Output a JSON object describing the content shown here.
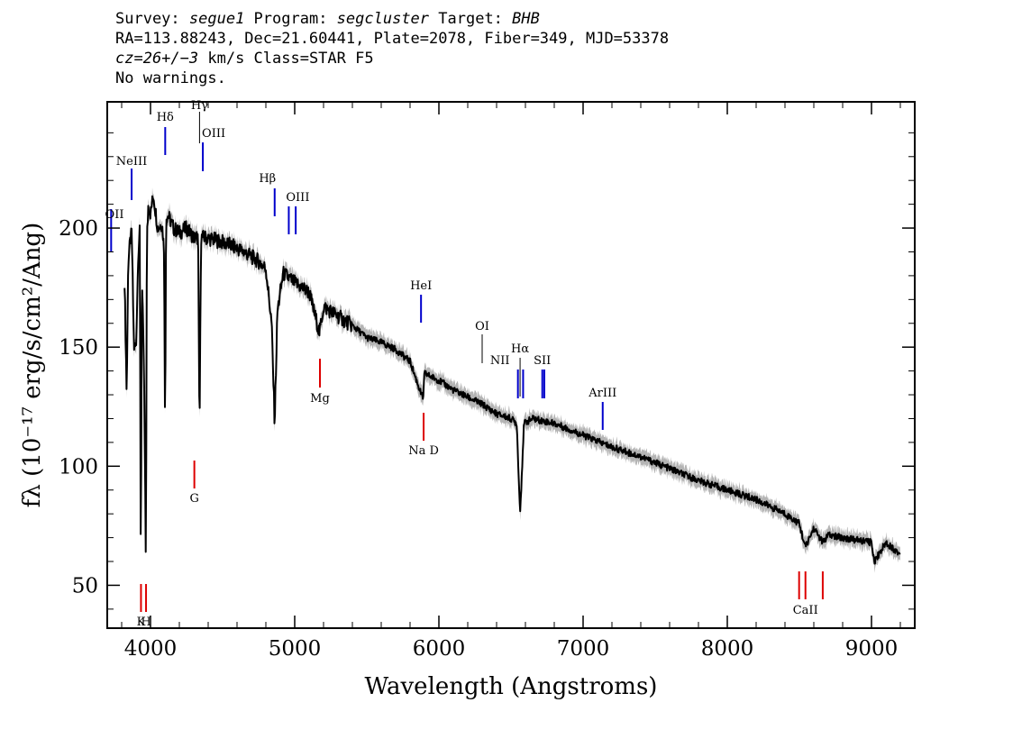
{
  "header": {
    "line1": {
      "survey_label": "Survey: ",
      "survey": "segue1",
      "program_label": " Program: ",
      "program": "segcluster",
      "target_label": " Target: ",
      "target": "BHB"
    },
    "line2": "RA=113.88243, Dec=21.60441, Plate=2078, Fiber=349, MJD=53378",
    "line3": {
      "cz": "cz=26+/−3",
      "rest": " km/s Class=STAR F5"
    },
    "line4": "No warnings."
  },
  "chart_data": {
    "type": "line",
    "xlabel": "Wavelength (Angstroms)",
    "ylabel": "fλ (10⁻¹⁷ erg/s/cm²/Ang)",
    "xlim": [
      3700,
      9300
    ],
    "ylim": [
      32,
      253
    ],
    "x_ticks": [
      4000,
      5000,
      6000,
      7000,
      8000,
      9000
    ],
    "y_ticks": [
      50,
      100,
      150,
      200
    ],
    "series": [
      {
        "color": "#000000",
        "error_band_color": "#b4b4b4",
        "x": [
          3820,
          3835,
          3845,
          3860,
          3870,
          3885,
          3900,
          3915,
          3925,
          3933,
          3940,
          3955,
          3968,
          3975,
          3985,
          4000,
          4020,
          4050,
          4080,
          4095,
          4101,
          4108,
          4125,
          4160,
          4200,
          4250,
          4300,
          4330,
          4340,
          4350,
          4380,
          4450,
          4550,
          4650,
          4750,
          4800,
          4840,
          4861,
          4880,
          4920,
          5000,
          5100,
          5172,
          5200,
          5300,
          5400,
          5500,
          5600,
          5700,
          5800,
          5890,
          5900,
          6000,
          6100,
          6200,
          6300,
          6400,
          6500,
          6540,
          6563,
          6590,
          6650,
          6800,
          7000,
          7200,
          7400,
          7600,
          7800,
          8000,
          8200,
          8400,
          8498,
          8542,
          8600,
          8662,
          8700,
          8800,
          8900,
          9000,
          9020,
          9100,
          9200
        ],
        "y": [
          178,
          130,
          185,
          195,
          198,
          150,
          150,
          190,
          198,
          55,
          180,
          140,
          58,
          195,
          210,
          206,
          214,
          200,
          202,
          190,
          110,
          205,
          205,
          200,
          198,
          200,
          196,
          196,
          112,
          196,
          196,
          195,
          193,
          190,
          186,
          183,
          160,
          118,
          165,
          181,
          177,
          173,
          156,
          167,
          163,
          159,
          154,
          152,
          149,
          144,
          128,
          139,
          136,
          132,
          129,
          126,
          122,
          120,
          118,
          80,
          118,
          120,
          118,
          113,
          108,
          104,
          99,
          94,
          90,
          86,
          80,
          76,
          66,
          74,
          68,
          71,
          70,
          69,
          68,
          60,
          68,
          63
        ]
      }
    ],
    "emission_lines": [
      {
        "label": "OII",
        "wavelength": 3727
      },
      {
        "label": "NeIII",
        "wavelength": 3869
      },
      {
        "label": "Hδ",
        "wavelength": 4102
      },
      {
        "label": "Hγ",
        "wavelength": 4340
      },
      {
        "label": "OIII",
        "wavelength": 4363
      },
      {
        "label": "Hβ",
        "wavelength": 4861
      },
      {
        "label": "OIII",
        "wavelength": 4959
      },
      {
        "label": "OIII",
        "wavelength": 5007
      },
      {
        "label": "HeI",
        "wavelength": 5876
      },
      {
        "label": "OI",
        "wavelength": 6300
      },
      {
        "label": "NII",
        "wavelength": 6548
      },
      {
        "label": "Hα",
        "wavelength": 6563
      },
      {
        "label": "NII",
        "wavelength": 6584
      },
      {
        "label": "SII",
        "wavelength": 6717
      },
      {
        "label": "SII",
        "wavelength": 6731
      },
      {
        "label": "ArIII",
        "wavelength": 7136
      }
    ],
    "absorption_lines": [
      {
        "label": "K",
        "wavelength": 3934
      },
      {
        "label": "H",
        "wavelength": 3969
      },
      {
        "label": "G",
        "wavelength": 4304
      },
      {
        "label": "Mg",
        "wavelength": 5175
      },
      {
        "label": "Na D",
        "wavelength": 5894
      },
      {
        "label": "CaII",
        "wavelength": 8498
      },
      {
        "label": "CaII",
        "wavelength": 8542
      },
      {
        "label": "CaII",
        "wavelength": 8662
      }
    ],
    "colors": {
      "emission": "#0000cc",
      "absorption": "#dd0000",
      "thin_marker": "#000000"
    }
  }
}
